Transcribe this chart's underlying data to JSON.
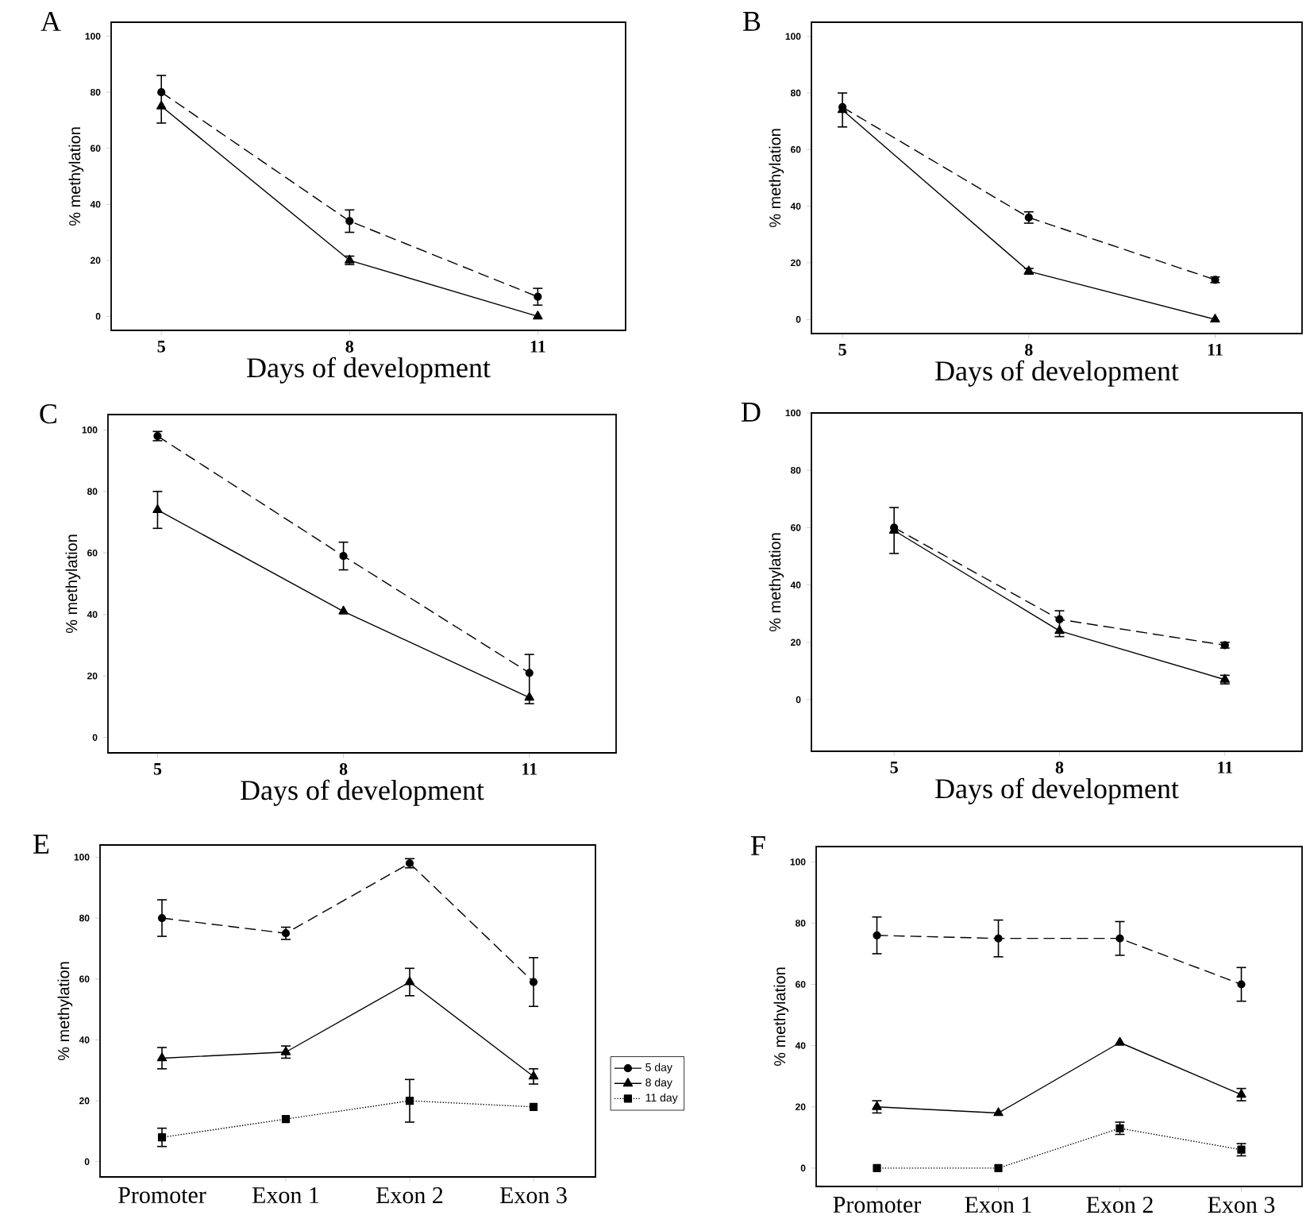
{
  "chart_data": [
    {
      "type": "line",
      "title": "A",
      "xlabel": "Days of development",
      "ylabel": "% methylation",
      "x": [
        5,
        8,
        11
      ],
      "xlim": [
        4.2,
        12.4
      ],
      "ylim": [
        -5,
        105
      ],
      "xticks": [
        5,
        8,
        11
      ],
      "yticks": [
        0,
        20,
        40,
        60,
        80,
        100
      ],
      "series": [
        {
          "color": "#000000",
          "marker": "circle",
          "line_style": "dashed",
          "values": [
            80,
            34,
            7
          ],
          "errors": [
            [
              69,
              86
            ],
            4,
            3
          ]
        },
        {
          "color": "#000000",
          "marker": "triangle",
          "line_style": "solid",
          "values": [
            75,
            20,
            0
          ],
          "errors": [
            null,
            1.5,
            null
          ]
        }
      ]
    },
    {
      "type": "line",
      "title": "B",
      "xlabel": "Days of development",
      "ylabel": "% methylation",
      "x": [
        5,
        8,
        11
      ],
      "xlim": [
        4.5,
        12.4
      ],
      "ylim": [
        -5,
        105
      ],
      "xticks": [
        5,
        8,
        11
      ],
      "yticks": [
        0,
        20,
        40,
        60,
        80,
        100
      ],
      "series": [
        {
          "color": "#000000",
          "marker": "circle",
          "line_style": "dashed",
          "values": [
            75,
            36,
            14
          ],
          "errors": [
            [
              68,
              80
            ],
            2,
            1
          ]
        },
        {
          "color": "#000000",
          "marker": "triangle",
          "line_style": "solid",
          "values": [
            74,
            17,
            0
          ],
          "errors": [
            null,
            1,
            null
          ]
        }
      ]
    },
    {
      "type": "line",
      "title": "C",
      "xlabel": "Days of development",
      "ylabel": "% methylation",
      "x": [
        5,
        8,
        11
      ],
      "xlim": [
        4.2,
        12.4
      ],
      "ylim": [
        -5,
        105
      ],
      "xticks": [
        5,
        8,
        11
      ],
      "yticks": [
        0,
        20,
        40,
        60,
        80,
        100
      ],
      "series": [
        {
          "color": "#000000",
          "marker": "circle",
          "line_style": "dashed",
          "values": [
            98,
            59,
            21
          ],
          "errors": [
            1.5,
            4.5,
            [
              11,
              27
            ]
          ]
        },
        {
          "color": "#000000",
          "marker": "triangle",
          "line_style": "solid",
          "values": [
            74,
            41,
            13
          ],
          "errors": [
            6,
            null,
            null
          ]
        }
      ]
    },
    {
      "type": "line",
      "title": "D",
      "xlabel": "Days of development",
      "ylabel": "% methylation",
      "x": [
        5,
        8,
        11
      ],
      "xlim": [
        3.5,
        12.4
      ],
      "ylim": [
        -18,
        100
      ],
      "xticks": [
        5,
        8,
        11
      ],
      "yticks": [
        0,
        20,
        40,
        60,
        80,
        100
      ],
      "series": [
        {
          "color": "#000000",
          "marker": "circle",
          "line_style": "dashed",
          "values": [
            60,
            28,
            19
          ],
          "errors": [
            [
              51,
              67
            ],
            [
              22,
              31
            ],
            1
          ]
        },
        {
          "color": "#000000",
          "marker": "triangle",
          "line_style": "solid",
          "values": [
            59,
            24,
            7
          ],
          "errors": [
            null,
            null,
            1.5
          ]
        }
      ]
    },
    {
      "type": "line",
      "title": "E",
      "ylabel": "% methylation",
      "categories": [
        "Promoter",
        "Exon 1",
        "Exon 2",
        "Exon 3"
      ],
      "ylim": [
        -5,
        104
      ],
      "yticks": [
        0,
        20,
        40,
        60,
        80,
        100
      ],
      "legend": "right",
      "series": [
        {
          "name": "5 day",
          "color": "#000000",
          "marker": "circle",
          "line_style": "dashed",
          "values": [
            80,
            75,
            98,
            59
          ],
          "errors": [
            6,
            2,
            1.5,
            8
          ]
        },
        {
          "name": "8 day",
          "color": "#000000",
          "marker": "triangle",
          "line_style": "solid",
          "values": [
            34,
            36,
            59,
            28
          ],
          "errors": [
            3.5,
            2,
            4.5,
            2.5
          ]
        },
        {
          "name": "11 day",
          "color": "#000000",
          "marker": "square",
          "line_style": "dotted",
          "values": [
            8,
            14,
            20,
            18
          ],
          "errors": [
            3,
            null,
            7,
            null
          ]
        }
      ]
    },
    {
      "type": "line",
      "title": "F",
      "ylabel": "% methylation",
      "categories": [
        "Promoter",
        "Exon 1",
        "Exon 2",
        "Exon 3"
      ],
      "ylim": [
        -6,
        105
      ],
      "yticks": [
        0,
        20,
        40,
        60,
        80,
        100
      ],
      "series": [
        {
          "color": "#000000",
          "marker": "circle",
          "line_style": "dashed",
          "values": [
            76,
            75,
            75,
            60
          ],
          "errors": [
            6,
            6,
            5.5,
            5.5
          ]
        },
        {
          "color": "#000000",
          "marker": "triangle",
          "line_style": "solid",
          "values": [
            20,
            18,
            41,
            24
          ],
          "errors": [
            2,
            null,
            null,
            2
          ]
        },
        {
          "color": "#000000",
          "marker": "square",
          "line_style": "dotted",
          "values": [
            0,
            0,
            13,
            6
          ],
          "errors": [
            null,
            null,
            2,
            2
          ]
        }
      ]
    }
  ]
}
